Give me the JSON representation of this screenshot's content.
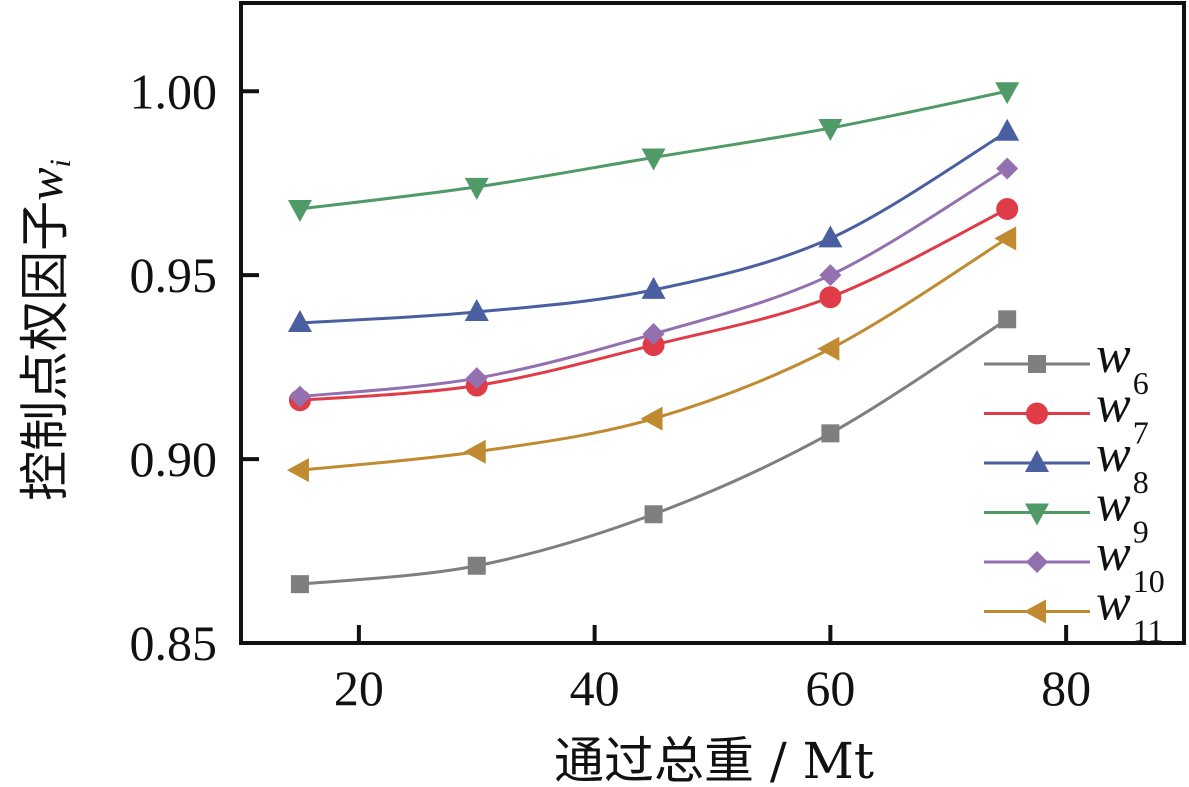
{
  "chart_data": {
    "type": "line",
    "title": "",
    "xlabel": "通过总重 / Mt",
    "ylabel": "控制点权因子",
    "ylabel_symbol": "w",
    "ylabel_symbol_sub": "i",
    "xlim": [
      10,
      90
    ],
    "ylim": [
      0.85,
      1.024
    ],
    "xticks": [
      20,
      40,
      60,
      80
    ],
    "xtick_labels": [
      "20",
      "40",
      "60",
      "80"
    ],
    "yticks": [
      0.85,
      0.9,
      0.95,
      1.0
    ],
    "ytick_labels": [
      "0.85",
      "0.90",
      "0.95",
      "1.00"
    ],
    "grid": false,
    "legend_position": "bottom-right",
    "x": [
      15,
      30,
      45,
      60,
      75
    ],
    "series": [
      {
        "name": "w6",
        "symbol": "w",
        "sub": "6",
        "marker": "square",
        "color": "#7f7f7f",
        "values": [
          0.866,
          0.871,
          0.885,
          0.907,
          0.938
        ]
      },
      {
        "name": "w7",
        "symbol": "w",
        "sub": "7",
        "marker": "circle",
        "color": "#e03c47",
        "values": [
          0.916,
          0.92,
          0.931,
          0.944,
          0.968
        ]
      },
      {
        "name": "w8",
        "symbol": "w",
        "sub": "8",
        "marker": "triangle-up",
        "color": "#4a5fa0",
        "values": [
          0.937,
          0.94,
          0.946,
          0.96,
          0.989
        ]
      },
      {
        "name": "w9",
        "symbol": "w",
        "sub": "9",
        "marker": "triangle-down",
        "color": "#4f9a66",
        "values": [
          0.968,
          0.974,
          0.982,
          0.99,
          1.0
        ]
      },
      {
        "name": "w10",
        "symbol": "w",
        "sub": "10",
        "marker": "diamond",
        "color": "#9370b0",
        "values": [
          0.917,
          0.922,
          0.934,
          0.95,
          0.979
        ]
      },
      {
        "name": "w11",
        "symbol": "w",
        "sub": "11",
        "marker": "triangle-left",
        "color": "#c08a30",
        "values": [
          0.897,
          0.902,
          0.911,
          0.93,
          0.96
        ]
      }
    ]
  }
}
